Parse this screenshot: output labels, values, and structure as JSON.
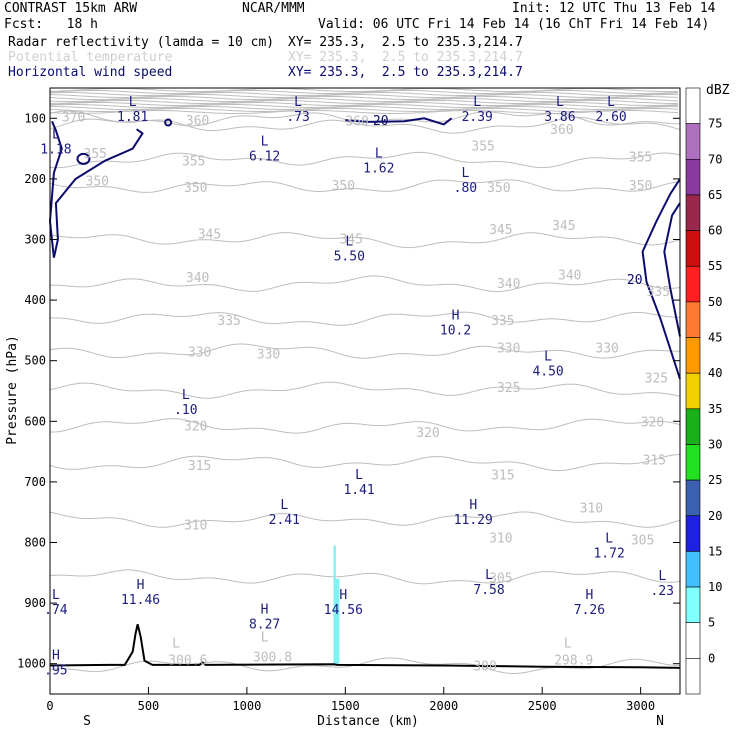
{
  "header": {
    "left_title": "CONTRAST 15km ARW",
    "org": "NCAR/MMM",
    "init": "Init: 12 UTC Thu 13 Feb 14",
    "fcst": "Fcst:   18 h",
    "valid": "Valid: 06 UTC Fri 14 Feb 14 (16 ChT Fri 14 Feb 14)",
    "fields": [
      {
        "label": "Radar reflectivity (lamda = 10 cm)",
        "xy": "XY= 235.3,  2.5 to 235.3,214.7"
      },
      {
        "label": "Potential temperature",
        "xy": "XY= 235.3,  2.5 to 235.3,214.7"
      },
      {
        "label": "Horizontal wind speed",
        "xy": "XY= 235.3,  2.5 to 235.3,214.7"
      }
    ]
  },
  "colors": {
    "navy": "#0c0c6e",
    "theta": "#bdbdbd",
    "wind_label": "#1c1c80",
    "terrain": "#000000",
    "radar_echo": "#7ff2f2"
  },
  "chart_data": {
    "type": "cross-section",
    "xlabel": "Distance (km)",
    "ylabel": "Pressure (hPa)",
    "xlim": [
      0,
      3200
    ],
    "ylim": [
      1050,
      50
    ],
    "x_ticks": [
      {
        "v": 0,
        "label": "0"
      },
      {
        "v": 500,
        "label": "500"
      },
      {
        "v": 1000,
        "label": "1000"
      },
      {
        "v": 1500,
        "label": "1500"
      },
      {
        "v": 2000,
        "label": "2000"
      },
      {
        "v": 2500,
        "label": "2500"
      },
      {
        "v": 3000,
        "label": "3000"
      }
    ],
    "y_ticks": [
      {
        "v": 100,
        "label": "100"
      },
      {
        "v": 200,
        "label": "200"
      },
      {
        "v": 300,
        "label": "300"
      },
      {
        "v": 400,
        "label": "400"
      },
      {
        "v": 500,
        "label": "500"
      },
      {
        "v": 600,
        "label": "600"
      },
      {
        "v": 700,
        "label": "700"
      },
      {
        "v": 800,
        "label": "800"
      },
      {
        "v": 900,
        "label": "900"
      },
      {
        "v": 1000,
        "label": "1000"
      }
    ],
    "x_endpoints": {
      "left": "S",
      "right": "N"
    },
    "theta_contours": [
      {
        "value": "300",
        "p": 1003,
        "label_x": 2210
      },
      {
        "value": "305",
        "p": 858,
        "label_x": 2290
      },
      {
        "value": "310",
        "p": 762,
        "label_x": 720
      },
      {
        "value": "315",
        "p": 668,
        "label_x": 750
      },
      {
        "value": "320",
        "p": 608,
        "label_x": 1920
      },
      {
        "value": "325",
        "p": 548,
        "label_x": 2420
      },
      {
        "value": "330",
        "p": 485,
        "label_x": 760
      },
      {
        "value": "335",
        "p": 430,
        "label_x": 910
      },
      {
        "value": "340",
        "p": 374,
        "label_x": 760
      },
      {
        "value": "345",
        "p": 300,
        "label_x": 2290
      },
      {
        "value": "350",
        "p": 212,
        "label_x": 760
      },
      {
        "value": "355",
        "p": 168,
        "label_x": 760
      },
      {
        "value": "360",
        "p": 112,
        "label_x": 760
      },
      {
        "value": "370",
        "p": 100,
        "label_x": 120
      }
    ],
    "theta_labels": [
      {
        "text": "370",
        "x": 120,
        "p": 97
      },
      {
        "text": "360",
        "x": 750,
        "p": 103
      },
      {
        "text": "360",
        "x": 1560,
        "p": 104
      },
      {
        "text": "360",
        "x": 2600,
        "p": 118
      },
      {
        "text": "355",
        "x": 230,
        "p": 157
      },
      {
        "text": "355",
        "x": 730,
        "p": 170
      },
      {
        "text": "355",
        "x": 2200,
        "p": 145
      },
      {
        "text": "355",
        "x": 3000,
        "p": 163
      },
      {
        "text": "350",
        "x": 240,
        "p": 203
      },
      {
        "text": "350",
        "x": 740,
        "p": 213
      },
      {
        "text": "350",
        "x": 1490,
        "p": 210
      },
      {
        "text": "350",
        "x": 2280,
        "p": 213
      },
      {
        "text": "350",
        "x": 3000,
        "p": 210
      },
      {
        "text": "345",
        "x": 810,
        "p": 290
      },
      {
        "text": "345",
        "x": 1530,
        "p": 298
      },
      {
        "text": "345",
        "x": 2290,
        "p": 283
      },
      {
        "text": "345",
        "x": 2610,
        "p": 276
      },
      {
        "text": "340",
        "x": 750,
        "p": 362
      },
      {
        "text": "340",
        "x": 2330,
        "p": 372
      },
      {
        "text": "340",
        "x": 2640,
        "p": 358
      },
      {
        "text": "335",
        "x": 910,
        "p": 433
      },
      {
        "text": "335",
        "x": 2300,
        "p": 433
      },
      {
        "text": "335",
        "x": 3090,
        "p": 385
      },
      {
        "text": "330",
        "x": 760,
        "p": 485
      },
      {
        "text": "330",
        "x": 1110,
        "p": 488
      },
      {
        "text": "330",
        "x": 2330,
        "p": 478
      },
      {
        "text": "330",
        "x": 2830,
        "p": 478
      },
      {
        "text": "325",
        "x": 2330,
        "p": 543
      },
      {
        "text": "325",
        "x": 3080,
        "p": 528
      },
      {
        "text": "320",
        "x": 740,
        "p": 607
      },
      {
        "text": "320",
        "x": 1920,
        "p": 618
      },
      {
        "text": "320",
        "x": 3060,
        "p": 600
      },
      {
        "text": "315",
        "x": 760,
        "p": 672
      },
      {
        "text": "315",
        "x": 2300,
        "p": 688
      },
      {
        "text": "315",
        "x": 3070,
        "p": 663
      },
      {
        "text": "310",
        "x": 740,
        "p": 770
      },
      {
        "text": "310",
        "x": 2750,
        "p": 742
      },
      {
        "text": "310",
        "x": 2290,
        "p": 792
      },
      {
        "text": "305",
        "x": 2290,
        "p": 858
      },
      {
        "text": "305",
        "x": 3010,
        "p": 795
      },
      {
        "text": "300",
        "x": 2210,
        "p": 1003
      },
      {
        "text": "300.6",
        "x": 700,
        "p": 993
      },
      {
        "text": "300.8",
        "x": 1130,
        "p": 988
      },
      {
        "text": "298.9",
        "x": 2660,
        "p": 993
      }
    ],
    "theta_extrema": [
      {
        "text": "L",
        "x": 640,
        "p": 973
      },
      {
        "text": "L",
        "x": 1090,
        "p": 963
      },
      {
        "text": "L",
        "x": 2630,
        "p": 973
      }
    ],
    "wind_contours": [
      {
        "value": "20",
        "label_x": 1680,
        "label_p": 103
      },
      {
        "value": "20",
        "label_x": 2970,
        "label_p": 365
      }
    ],
    "wind_extrema": [
      {
        "mark": "L",
        "value": "1.81",
        "x": 420,
        "p": 80
      },
      {
        "mark": "L",
        "value": ".73",
        "x": 1260,
        "p": 80
      },
      {
        "mark": "L",
        "value": "2.39",
        "x": 2170,
        "p": 80
      },
      {
        "mark": "L",
        "value": "3.86",
        "x": 2590,
        "p": 80
      },
      {
        "mark": "L",
        "value": "2.60",
        "x": 2850,
        "p": 80
      },
      {
        "mark": "L",
        "value": "1.18",
        "x": 30,
        "p": 133
      },
      {
        "mark": "L",
        "value": "6.12",
        "x": 1090,
        "p": 145
      },
      {
        "mark": "L",
        "value": "1.62",
        "x": 1670,
        "p": 165
      },
      {
        "mark": "L",
        "value": ".80",
        "x": 2110,
        "p": 197
      },
      {
        "mark": "L",
        "value": "5.50",
        "x": 1520,
        "p": 310
      },
      {
        "mark": "H",
        "value": "10.2",
        "x": 2060,
        "p": 432
      },
      {
        "mark": "L",
        "value": "4.50",
        "x": 2530,
        "p": 500
      },
      {
        "mark": "L",
        "value": ".10",
        "x": 690,
        "p": 563
      },
      {
        "mark": "L",
        "value": "1.41",
        "x": 1570,
        "p": 695
      },
      {
        "mark": "L",
        "value": "2.41",
        "x": 1190,
        "p": 745
      },
      {
        "mark": "H",
        "value": "11.29",
        "x": 2150,
        "p": 745
      },
      {
        "mark": "L",
        "value": "1.72",
        "x": 2840,
        "p": 800
      },
      {
        "mark": "L",
        "value": "7.58",
        "x": 2230,
        "p": 860
      },
      {
        "mark": "L",
        "value": ".23",
        "x": 3110,
        "p": 862
      },
      {
        "mark": "L",
        "value": ".74",
        "x": 30,
        "p": 893
      },
      {
        "mark": "H",
        "value": "11.46",
        "x": 460,
        "p": 877
      },
      {
        "mark": "H",
        "value": "14.56",
        "x": 1490,
        "p": 893
      },
      {
        "mark": "H",
        "value": "7.26",
        "x": 2740,
        "p": 893
      },
      {
        "mark": "H",
        "value": "8.27",
        "x": 1090,
        "p": 917
      },
      {
        "mark": "H",
        "value": ".95",
        "x": 30,
        "p": 993
      }
    ],
    "radar_echoes": [
      {
        "x0": 1440,
        "x1": 1452,
        "p_top": 805,
        "p_bottom": 1000
      },
      {
        "x0": 1445,
        "x1": 1470,
        "p_top": 860,
        "p_bottom": 1000
      }
    ],
    "terrain": [
      [
        0,
        1003
      ],
      [
        300,
        1002
      ],
      [
        380,
        1002
      ],
      [
        420,
        980
      ],
      [
        435,
        950
      ],
      [
        445,
        935
      ],
      [
        460,
        955
      ],
      [
        480,
        995
      ],
      [
        520,
        1002
      ],
      [
        760,
        1002
      ],
      [
        775,
        998
      ],
      [
        790,
        1002
      ],
      [
        1440,
        1001
      ],
      [
        1460,
        1002
      ],
      [
        2000,
        1003
      ],
      [
        2500,
        1005
      ],
      [
        3000,
        1006
      ],
      [
        3200,
        1007
      ]
    ],
    "colorbar": {
      "label": "dBZ",
      "ticks": [
        "0",
        "5",
        "10",
        "15",
        "20",
        "25",
        "30",
        "35",
        "40",
        "45",
        "50",
        "55",
        "60",
        "65",
        "70",
        "75"
      ],
      "colors": [
        "#ffffff",
        "#ffffff",
        "#80ffff",
        "#40c0ff",
        "#2020e0",
        "#3a62b0",
        "#20e020",
        "#1ab01a",
        "#f0d000",
        "#ff9900",
        "#ff7a30",
        "#ff2020",
        "#cc1010",
        "#99284a",
        "#8a3a9e",
        "#b070c0",
        "#ffffff"
      ]
    }
  }
}
